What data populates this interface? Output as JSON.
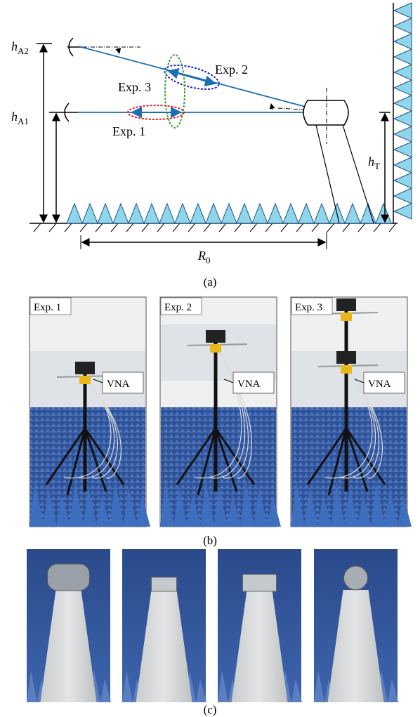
{
  "panel_a": {
    "h_a2": {
      "base": "h",
      "sub": "A2"
    },
    "h_a1": {
      "base": "h",
      "sub": "A1"
    },
    "h_t": {
      "base": "h",
      "sub": "T"
    },
    "r0": {
      "base": "R",
      "sub": "0"
    },
    "exp1": "Exp. 1",
    "exp2": "Exp. 2",
    "exp3": "Exp. 3",
    "caption": "(a)"
  },
  "panel_b": {
    "photos": [
      {
        "label": "Exp. 1",
        "device": "VNA"
      },
      {
        "label": "Exp. 2",
        "device": "VNA"
      },
      {
        "label": "Exp. 3",
        "device": "VNA"
      }
    ],
    "caption": "(b)"
  },
  "panel_c": {
    "caption": "(c)"
  }
}
